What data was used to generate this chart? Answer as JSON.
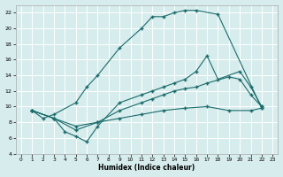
{
  "xlabel": "Humidex (Indice chaleur)",
  "bg_color": "#d7ecec",
  "grid_color": "#ffffff",
  "line_color": "#1a6b6b",
  "xlim": [
    -0.5,
    23.5
  ],
  "ylim": [
    4,
    23
  ],
  "xticks": [
    0,
    1,
    2,
    3,
    4,
    5,
    6,
    7,
    8,
    9,
    10,
    11,
    12,
    13,
    14,
    15,
    16,
    17,
    18,
    19,
    20,
    21,
    22,
    23
  ],
  "yticks": [
    4,
    6,
    8,
    10,
    12,
    14,
    16,
    18,
    20,
    22
  ],
  "line1_x": [
    1,
    2,
    3,
    5,
    6,
    7,
    9,
    11,
    12,
    13,
    14,
    15,
    16,
    18,
    22
  ],
  "line1_y": [
    9.5,
    8.5,
    9.0,
    10.5,
    12.5,
    14.0,
    17.5,
    20.0,
    21.5,
    21.5,
    22.0,
    22.3,
    22.3,
    21.8,
    9.8
  ],
  "line2_x": [
    1,
    3,
    4,
    5,
    6,
    7,
    9,
    11,
    12,
    13,
    14,
    15,
    16,
    17,
    18,
    20,
    21,
    22
  ],
  "line2_y": [
    9.5,
    8.5,
    6.8,
    6.2,
    5.5,
    7.5,
    10.5,
    11.5,
    12.0,
    12.5,
    13.0,
    13.5,
    14.5,
    16.5,
    13.5,
    14.5,
    12.5,
    10.0
  ],
  "line3_x": [
    1,
    3,
    5,
    7,
    9,
    11,
    12,
    13,
    14,
    15,
    16,
    17,
    19,
    20,
    21,
    22
  ],
  "line3_y": [
    9.5,
    8.5,
    7.0,
    8.0,
    9.5,
    10.5,
    11.0,
    11.5,
    12.0,
    12.3,
    12.5,
    13.0,
    13.8,
    13.5,
    11.5,
    10.0
  ],
  "line4_x": [
    1,
    3,
    5,
    7,
    9,
    11,
    13,
    15,
    17,
    19,
    21,
    22
  ],
  "line4_y": [
    9.5,
    8.5,
    7.5,
    8.0,
    8.5,
    9.0,
    9.5,
    9.8,
    10.0,
    9.5,
    9.5,
    9.8
  ],
  "line1_markers_x": [
    1,
    2,
    3,
    5,
    6,
    7,
    9,
    11,
    12,
    13,
    14,
    15,
    16,
    18,
    22
  ],
  "line2_markers_x": [
    1,
    3,
    4,
    5,
    6,
    7,
    9,
    11,
    12,
    13,
    14,
    15,
    16,
    17,
    18,
    20,
    21,
    22
  ]
}
